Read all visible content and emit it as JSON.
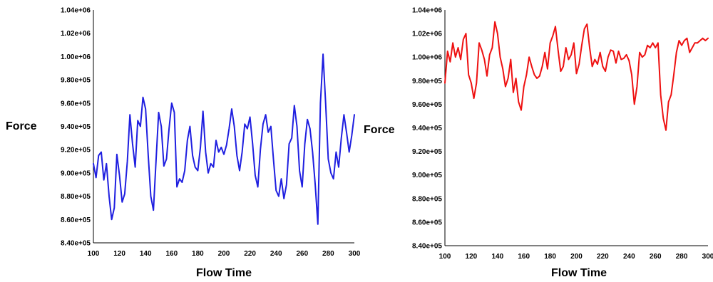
{
  "chart_data": [
    {
      "type": "line",
      "title": "",
      "xlabel": "Flow Time",
      "ylabel": "Force",
      "xlim": [
        100,
        300
      ],
      "ylim": [
        840000,
        1040000
      ],
      "grid": false,
      "x_ticks": [
        "100",
        "120",
        "140",
        "160",
        "180",
        "200",
        "220",
        "240",
        "260",
        "280",
        "300"
      ],
      "y_ticks": [
        "8.40e+05",
        "8.60e+05",
        "8.80e+05",
        "9.00e+05",
        "9.20e+05",
        "9.40e+05",
        "9.60e+05",
        "9.80e+05",
        "1.00e+06",
        "1.02e+06",
        "1.04e+06"
      ],
      "series": [
        {
          "color": "#1f1fe0",
          "x": [
            100,
            102,
            104,
            106,
            108,
            110,
            112,
            114,
            116,
            118,
            120,
            122,
            124,
            126,
            128,
            130,
            132,
            134,
            136,
            138,
            140,
            142,
            144,
            146,
            148,
            150,
            152,
            154,
            156,
            158,
            160,
            162,
            164,
            166,
            168,
            170,
            172,
            174,
            176,
            178,
            180,
            182,
            184,
            186,
            188,
            190,
            192,
            194,
            196,
            198,
            200,
            202,
            204,
            206,
            208,
            210,
            212,
            214,
            216,
            218,
            220,
            222,
            224,
            226,
            228,
            230,
            232,
            234,
            236,
            238,
            240,
            242,
            244,
            246,
            248,
            250,
            252,
            254,
            256,
            258,
            260,
            262,
            264,
            266,
            268,
            270,
            272,
            274,
            276,
            278,
            280,
            282,
            284,
            286,
            288,
            290,
            292,
            294,
            296,
            298,
            300
          ],
          "y": [
            908000,
            896000,
            915000,
            918000,
            894000,
            908000,
            880000,
            860000,
            870000,
            916000,
            898000,
            875000,
            882000,
            910000,
            950000,
            925000,
            905000,
            945000,
            940000,
            965000,
            955000,
            915000,
            880000,
            868000,
            910000,
            952000,
            940000,
            906000,
            912000,
            938000,
            960000,
            952000,
            888000,
            895000,
            892000,
            902000,
            928000,
            940000,
            915000,
            905000,
            902000,
            922000,
            953000,
            918000,
            900000,
            908000,
            905000,
            928000,
            918000,
            922000,
            916000,
            924000,
            938000,
            955000,
            940000,
            915000,
            902000,
            918000,
            942000,
            938000,
            948000,
            925000,
            898000,
            888000,
            920000,
            942000,
            950000,
            935000,
            940000,
            912000,
            885000,
            880000,
            895000,
            878000,
            890000,
            925000,
            930000,
            958000,
            940000,
            902000,
            888000,
            925000,
            946000,
            938000,
            918000,
            890000,
            856000,
            960000,
            1002000,
            960000,
            912000,
            900000,
            895000,
            918000,
            905000,
            930000,
            950000,
            935000,
            918000,
            932000,
            950000
          ]
        }
      ]
    },
    {
      "type": "line",
      "title": "",
      "xlabel": "Flow Time",
      "ylabel": "Force",
      "xlim": [
        100,
        300
      ],
      "ylim": [
        840000,
        1040000
      ],
      "grid": false,
      "x_ticks": [
        "100",
        "120",
        "140",
        "160",
        "180",
        "200",
        "220",
        "240",
        "260",
        "280",
        "300"
      ],
      "y_ticks": [
        "8.40e+05",
        "8.60e+05",
        "8.80e+05",
        "9.00e+05",
        "9.20e+05",
        "9.40e+05",
        "9.60e+05",
        "9.80e+05",
        "1.00e+06",
        "1.02e+06",
        "1.04e+06"
      ],
      "series": [
        {
          "color": "#ee1111",
          "x": [
            100,
            102,
            104,
            106,
            108,
            110,
            112,
            114,
            116,
            118,
            120,
            122,
            124,
            126,
            128,
            130,
            132,
            134,
            136,
            138,
            140,
            142,
            144,
            146,
            148,
            150,
            152,
            154,
            156,
            158,
            160,
            162,
            164,
            166,
            168,
            170,
            172,
            174,
            176,
            178,
            180,
            182,
            184,
            186,
            188,
            190,
            192,
            194,
            196,
            198,
            200,
            202,
            204,
            206,
            208,
            210,
            212,
            214,
            216,
            218,
            220,
            222,
            224,
            226,
            228,
            230,
            232,
            234,
            236,
            238,
            240,
            242,
            244,
            246,
            248,
            250,
            252,
            254,
            256,
            258,
            260,
            262,
            264,
            266,
            268,
            270,
            272,
            274,
            276,
            278,
            280,
            282,
            284,
            286,
            288,
            290,
            292,
            294,
            296,
            298,
            300
          ],
          "y": [
            978000,
            1005000,
            996000,
            1012000,
            1000000,
            1008000,
            998000,
            1015000,
            1020000,
            985000,
            978000,
            965000,
            978000,
            1012000,
            1006000,
            998000,
            984000,
            1002000,
            1008000,
            1030000,
            1020000,
            1000000,
            990000,
            975000,
            982000,
            998000,
            970000,
            982000,
            962000,
            955000,
            975000,
            985000,
            1000000,
            992000,
            985000,
            982000,
            984000,
            992000,
            1004000,
            990000,
            1012000,
            1018000,
            1026000,
            1006000,
            988000,
            992000,
            1008000,
            998000,
            1002000,
            1012000,
            986000,
            994000,
            1010000,
            1024000,
            1028000,
            1008000,
            992000,
            998000,
            994000,
            1004000,
            992000,
            988000,
            1000000,
            1006000,
            1005000,
            995000,
            1005000,
            998000,
            999000,
            1002000,
            997000,
            985000,
            960000,
            975000,
            1004000,
            1000000,
            1002000,
            1010000,
            1008000,
            1012000,
            1008000,
            1012000,
            968000,
            948000,
            938000,
            962000,
            968000,
            985000,
            1004000,
            1014000,
            1010000,
            1014000,
            1016000,
            1004000,
            1008000,
            1012000,
            1012000,
            1014000,
            1016000,
            1014000,
            1016000
          ]
        }
      ]
    }
  ]
}
